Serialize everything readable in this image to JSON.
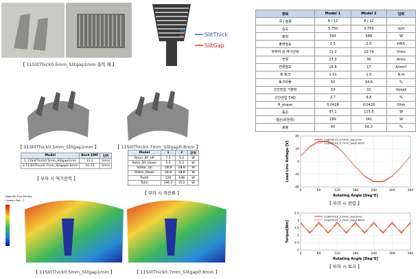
{
  "photo_section": {
    "caption": "【 11SlitThick0.5mm_Slitgap1mm 출력 예 】"
  },
  "slit_diagram": {
    "legend": [
      "SlitThick",
      "SlitGap"
    ]
  },
  "models_3d": {
    "captions": [
      "【 11SlitThick0.5mm_Slitgap1mm 】",
      "【 11SlitThick0.7mm_Slitgap0.8mm 】"
    ]
  },
  "back_emf_table": {
    "header": [
      "Model",
      "Back EMF",
      "단위"
    ],
    "rows": [
      [
        "1.11SlitThick0.5mm_Sltigap1mm",
        "11.2",
        "Vrms"
      ],
      [
        "2.11SlitThick0.7mm_Slitgap0.8mm",
        "10.74",
        "Vrms"
      ]
    ],
    "caption": "【 부하 시 역기전력 】"
  },
  "loss_table": {
    "header": [
      "Model",
      "1",
      "2",
      "단위"
    ],
    "rows": [
      [
        "Rotor_BY_UP",
        "7.5",
        "5.2",
        "W"
      ],
      [
        "Rotor_BY_Down",
        "5.5",
        "5.2",
        "W"
      ],
      [
        "Stator_Up",
        "28.8",
        "28.8",
        "W"
      ],
      [
        "Stator_Down",
        "28.8",
        "28.8",
        "W"
      ],
      [
        "Teeth",
        "126",
        "148",
        "W"
      ],
      [
        "Total",
        "196.5",
        "213",
        "W"
      ]
    ],
    "caption": "【 부하 시 와전류 】"
  },
  "flux_section": {
    "legend_title": "Magnetic Flux Density",
    "legend_unit": "Contour Plot : T",
    "captions": [
      "【 11SlitThick0.5mm_Slitgap1mm 】",
      "【 11SlitThick0.7mm_Slitgap0.8mm 】"
    ]
  },
  "spec_table": {
    "header": [
      "항목",
      "Model 1",
      "Model 2",
      "단위"
    ],
    "rows": [
      [
        "극 / 슬롯",
        "8 / 12",
        "8 / 12",
        "-"
      ],
      [
        "속도",
        "3,750",
        "3,750",
        "rpm"
      ],
      [
        "출력",
        "593",
        "588",
        "W"
      ],
      [
        "출력밀도",
        "2.5",
        "2.5",
        "kW/L"
      ],
      [
        "무부하 상 역기전력",
        "11.2",
        "10.74",
        "Vrms"
      ],
      [
        "전류",
        "27.3",
        "30",
        "Arms"
      ],
      [
        "전류밀도",
        "15.6",
        "17",
        "A/mm²"
      ],
      [
        "축 토크",
        "1.51",
        "1.5",
        "N·m"
      ],
      [
        "토크리플",
        "50",
        "34.6",
        "%"
      ],
      [
        "선간전압 기본파",
        "33",
        "32",
        "Vpeak"
      ],
      [
        "선간전압 THD",
        "3.7",
        "4.8",
        "%"
      ],
      [
        "R_phase",
        "0.0428",
        "0.0428",
        "Ohm"
      ],
      [
        "동손",
        "97.1",
        "115.6",
        "W"
      ],
      [
        "철손(와전류)",
        "299",
        "341",
        "W"
      ],
      [
        "효율",
        "60",
        "56.3",
        "%"
      ]
    ]
  },
  "chart_data": [
    {
      "type": "line",
      "ylabel": "Load Line Voltage [V]",
      "xlabel": "Rotating Angle [Deg°E]",
      "caption": "【 부하 시 전압 】",
      "x": [
        0,
        30,
        60,
        90,
        120,
        150,
        180,
        210,
        240,
        270,
        300,
        330,
        360
      ],
      "series": [
        {
          "name": "11SlitThick_0.5mm_Gap1mm",
          "color": "#c0392b",
          "values": [
            8.5,
            23.3,
            31.9,
            31.9,
            23.3,
            8.5,
            -8.5,
            -23.3,
            -31.9,
            -31.9,
            -23.3,
            -8.5,
            8.5
          ]
        },
        {
          "name": "11SlitThick_0.7mm_Gap0.8mm",
          "color": "#e89a7a",
          "values": [
            8.3,
            22.6,
            30.9,
            30.9,
            22.6,
            8.3,
            -8.3,
            -22.6,
            -30.9,
            -30.9,
            -22.6,
            -8.3,
            8.3
          ]
        }
      ],
      "xlim": [
        0,
        360
      ],
      "xticks": [
        0,
        60,
        120,
        180,
        240,
        300,
        360
      ],
      "ylim": [
        -40,
        40
      ],
      "yticks": [
        -40,
        -20,
        0,
        20,
        40
      ],
      "grid": true
    },
    {
      "type": "line",
      "ylabel": "Torque[Nm]",
      "xlabel": "Rotating Angle [Deg°E]",
      "caption": "【 부하 시 토크 】",
      "x": [
        0,
        15,
        30,
        45,
        60,
        75,
        90,
        105,
        120,
        135,
        150,
        165,
        180,
        195,
        210,
        225,
        240,
        255,
        270,
        285,
        300,
        315,
        330,
        345,
        360
      ],
      "series": [
        {
          "name": "11SlitThick_0.5mm_Gap1mm",
          "color": "#c0392b",
          "values": [
            1.88,
            1.51,
            1.14,
            1.51,
            1.88,
            1.51,
            1.14,
            1.51,
            1.88,
            1.51,
            1.14,
            1.51,
            1.88,
            1.51,
            1.14,
            1.51,
            1.88,
            1.51,
            1.14,
            1.51,
            1.88,
            1.51,
            1.14,
            1.51,
            1.88
          ]
        },
        {
          "name": "11SlitThick_0.7mm_Gap0.8mm",
          "color": "#e8a060",
          "values": [
            1.76,
            1.5,
            1.24,
            1.5,
            1.76,
            1.5,
            1.24,
            1.5,
            1.76,
            1.5,
            1.24,
            1.5,
            1.76,
            1.5,
            1.24,
            1.5,
            1.76,
            1.5,
            1.24,
            1.5,
            1.76,
            1.5,
            1.24,
            1.5,
            1.76
          ]
        }
      ],
      "xlim": [
        0,
        360
      ],
      "xticks": [
        0,
        60,
        120,
        180,
        240,
        300,
        360
      ],
      "ylim": [
        0,
        2.5
      ],
      "yticks": [
        0,
        0.5,
        1,
        1.5,
        2,
        2.5
      ],
      "grid": true
    }
  ]
}
